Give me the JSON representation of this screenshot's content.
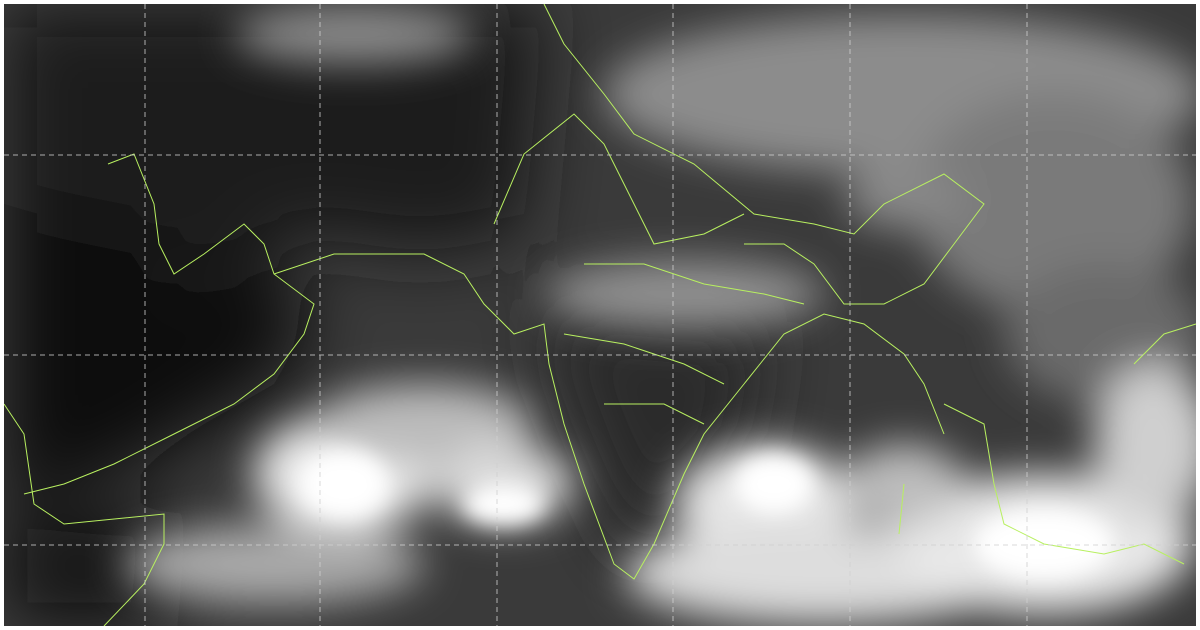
{
  "image": {
    "kind": "satellite-infrared-imagery",
    "colors": {
      "land_dark": "#141414",
      "sea": "#3c3c3c",
      "cloud": "#f2f2f2",
      "boundary": "#b8f060",
      "grid": "#cfcfcf"
    },
    "grid_style": "dashed"
  }
}
